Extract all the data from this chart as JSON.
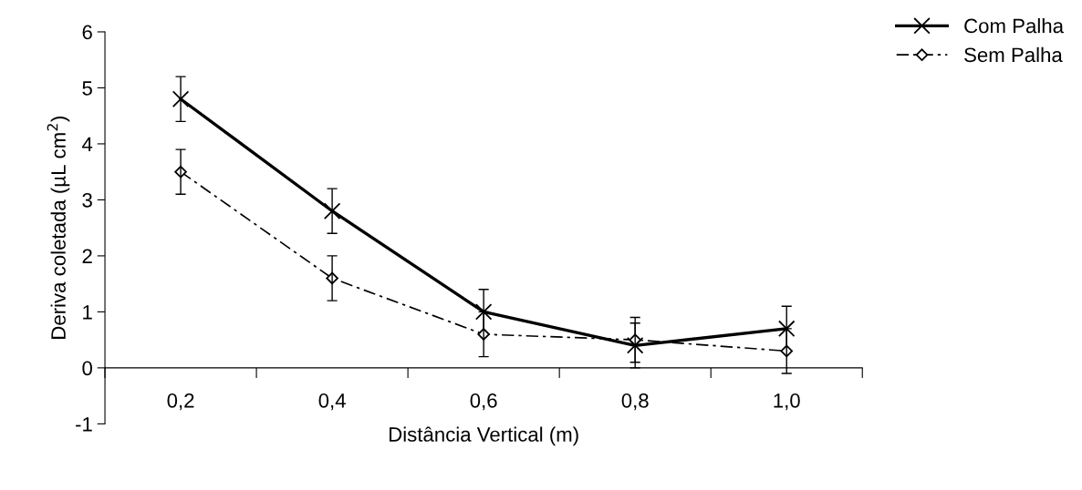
{
  "chart_data": {
    "type": "line",
    "xlabel": "Distância Vertical (m)",
    "ylabel": "Deriva coletada (µL cm$^{2}$)",
    "categories": [
      "0,2",
      "0,4",
      "0,6",
      "0,8",
      "1,0"
    ],
    "ylim": [
      -1,
      6
    ],
    "yticks": [
      -1,
      0,
      1,
      2,
      3,
      4,
      5,
      6
    ],
    "grid": false,
    "legend": "top right",
    "series": [
      {
        "name": "Com Palha",
        "color": "#000000",
        "values": [
          4.8,
          2.8,
          1.0,
          0.4,
          0.7
        ],
        "errors": [
          0.4,
          0.4,
          0.4,
          0.4,
          0.4
        ],
        "marker": "cross",
        "line_style": "solid"
      },
      {
        "name": "Sem Palha",
        "color": "#000000",
        "values": [
          3.5,
          1.6,
          0.6,
          0.5,
          0.3
        ],
        "errors": [
          0.4,
          0.4,
          0.4,
          0.4,
          0.4
        ],
        "marker": "diamond",
        "line_style": "dashdot"
      }
    ]
  }
}
